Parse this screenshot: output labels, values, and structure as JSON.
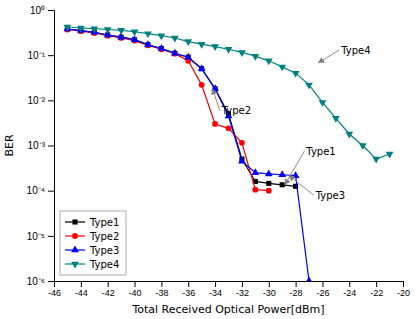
{
  "chart_data": {
    "type": "line",
    "xlabel": "Total Received Optical Power[dBm]",
    "ylabel": "BER",
    "log": "y",
    "grid": false,
    "legend": "lower left",
    "xlim": [
      -46,
      -20
    ],
    "ylim": [
      1e-06,
      1.0
    ],
    "xticks": [
      -46,
      -44,
      -42,
      -40,
      -38,
      -36,
      -34,
      -32,
      -30,
      -28,
      -26,
      -24,
      -22,
      -20
    ],
    "yticks": [
      {
        "value": 1e-06,
        "label": "10⁻⁶"
      },
      {
        "value": 1e-05,
        "label": "10⁻⁵"
      },
      {
        "value": 0.0001,
        "label": "10⁻⁴"
      },
      {
        "value": 0.001,
        "label": "10⁻³"
      },
      {
        "value": 0.01,
        "label": "10⁻²"
      },
      {
        "value": 0.1,
        "label": "10⁻¹"
      },
      {
        "value": 1,
        "label": "10⁰"
      }
    ],
    "series": [
      {
        "name": "Type1",
        "color": "black",
        "marker": "square",
        "x": [
          -45,
          -44,
          -43,
          -42,
          -41,
          -40,
          -39,
          -38,
          -37,
          -36,
          -35,
          -34,
          -33,
          -32,
          -31,
          -30,
          -29,
          -28
        ],
        "values": [
          0.38,
          0.35,
          0.32,
          0.28,
          0.25,
          0.22,
          0.17,
          0.14,
          0.11,
          0.09,
          0.05,
          0.018,
          0.005,
          0.0005,
          0.00016,
          0.000145,
          0.000135,
          0.000125
        ]
      },
      {
        "name": "Type2",
        "color": "red",
        "marker": "circle",
        "x": [
          -45,
          -44,
          -43,
          -42,
          -41,
          -40,
          -39,
          -38,
          -37,
          -36,
          -35,
          -34,
          -33,
          -32,
          -31,
          -30
        ],
        "values": [
          0.37,
          0.34,
          0.31,
          0.27,
          0.24,
          0.21,
          0.165,
          0.135,
          0.108,
          0.075,
          0.022,
          0.003,
          0.0024,
          0.00115,
          0.000105,
          0.0001
        ]
      },
      {
        "name": "Type3",
        "color": "blue",
        "marker": "triangle-up",
        "x": [
          -45,
          -44,
          -43,
          -42,
          -41,
          -40,
          -39,
          -38,
          -37,
          -36,
          -35,
          -34,
          -33,
          -32,
          -31,
          -30,
          -29,
          -28,
          -27
        ],
        "values": [
          0.38,
          0.35,
          0.32,
          0.28,
          0.25,
          0.22,
          0.17,
          0.14,
          0.11,
          0.09,
          0.05,
          0.018,
          0.0045,
          0.00045,
          0.00025,
          0.000235,
          0.000225,
          0.000215,
          1e-06
        ]
      },
      {
        "name": "Type4",
        "color": "#008080",
        "marker": "triangle-down",
        "x": [
          -45,
          -44,
          -43,
          -42,
          -41,
          -40,
          -39,
          -38,
          -37,
          -36,
          -35,
          -34,
          -33,
          -32,
          -31,
          -30,
          -29,
          -28,
          -27,
          -26,
          -25,
          -24,
          -23,
          -22,
          -21
        ],
        "values": [
          0.42,
          0.4,
          0.385,
          0.37,
          0.355,
          0.33,
          0.3,
          0.27,
          0.24,
          0.2,
          0.175,
          0.155,
          0.135,
          0.115,
          0.095,
          0.075,
          0.055,
          0.04,
          0.022,
          0.009,
          0.004,
          0.0018,
          0.001,
          0.0005,
          0.00065
        ]
      }
    ],
    "annotations": [
      {
        "text": "Type4",
        "xy": [
          -26.3,
          0.068
        ],
        "xytext": [
          -24.6,
          0.13
        ]
      },
      {
        "text": "Type2",
        "xy": [
          -34.2,
          0.018
        ],
        "xytext": [
          -33.5,
          0.006
        ]
      },
      {
        "text": "Type1",
        "xy": [
          -28.8,
          0.000135
        ],
        "xytext": [
          -27.2,
          0.00075
        ]
      },
      {
        "text": "Type3",
        "xy": [
          -28.5,
          0.000215
        ],
        "xytext": [
          -26.5,
          8e-05
        ]
      }
    ]
  }
}
